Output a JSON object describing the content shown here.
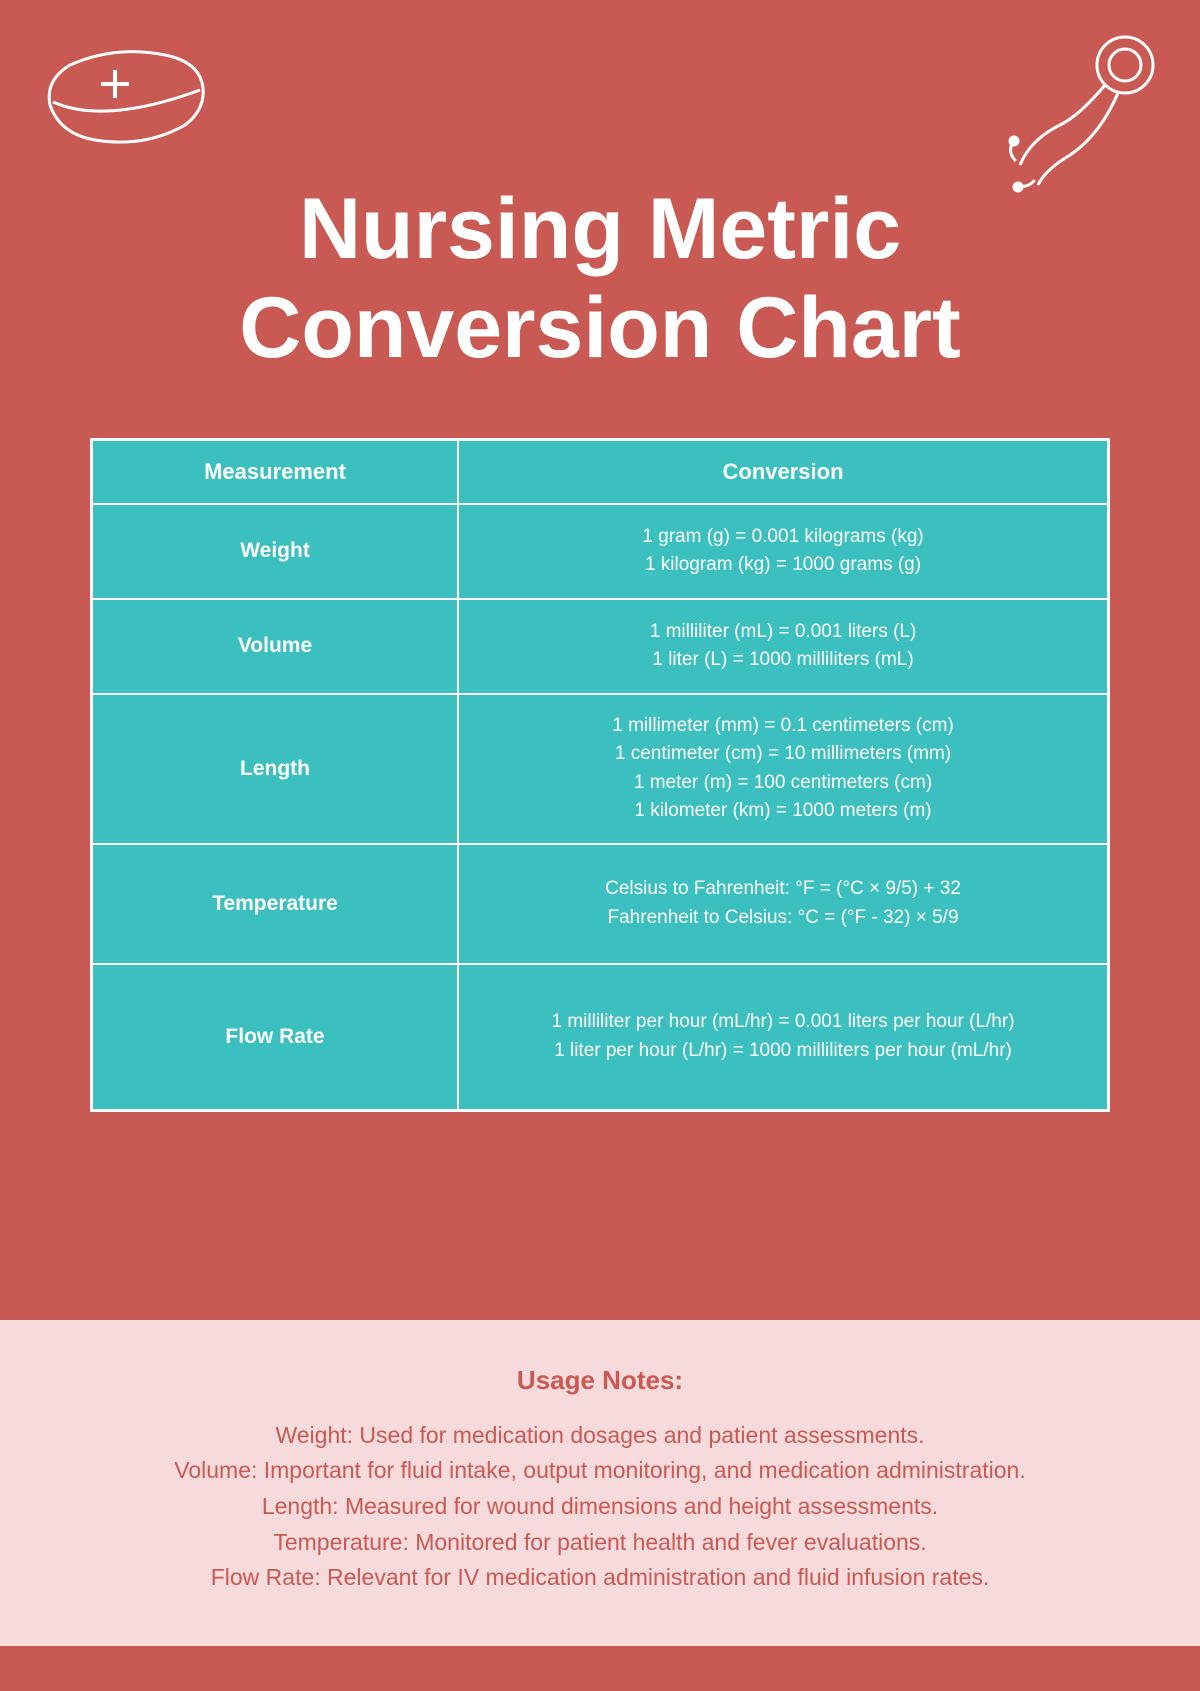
{
  "title": "Nursing Metric\nConversion Chart",
  "colors": {
    "background": "#c95a53",
    "table_bg": "#3cbfbf",
    "table_border": "#ffffff",
    "text_white": "#ffffff",
    "notes_bg": "#f7dadb",
    "notes_text": "#c95a53"
  },
  "table": {
    "headers": [
      "Measurement",
      "Conversion"
    ],
    "rows": [
      {
        "measurement": "Weight",
        "conversions": [
          "1 gram (g) = 0.001 kilograms (kg)",
          "1 kilogram (kg) = 1000 grams (g)"
        ]
      },
      {
        "measurement": "Volume",
        "conversions": [
          "1 milliliter (mL) = 0.001 liters (L)",
          "1 liter (L) = 1000 milliliters (mL)"
        ]
      },
      {
        "measurement": "Length",
        "conversions": [
          "1 millimeter (mm) = 0.1 centimeters (cm)",
          "1 centimeter (cm) = 10 millimeters (mm)",
          "1 meter (m) = 100 centimeters (cm)",
          "1 kilometer (km) = 1000 meters (m)"
        ]
      },
      {
        "measurement": "Temperature",
        "conversions": [
          "Celsius to Fahrenheit: °F = (°C × 9/5) + 32",
          "Fahrenheit to Celsius: °C = (°F - 32) × 5/9"
        ]
      },
      {
        "measurement": "Flow Rate",
        "conversions": [
          "1 milliliter per hour (mL/hr) = 0.001 liters per hour (L/hr)",
          "1 liter per hour (L/hr) = 1000 milliliters per hour (mL/hr)"
        ]
      }
    ]
  },
  "notes": {
    "title": "Usage Notes:",
    "lines": [
      "Weight: Used for medication dosages and patient assessments.",
      "Volume: Important for fluid intake, output monitoring, and medication administration.",
      "Length: Measured for wound dimensions and height assessments.",
      "Temperature: Monitored for patient health and fever evaluations.",
      "Flow Rate: Relevant for IV medication administration and fluid infusion rates."
    ]
  }
}
